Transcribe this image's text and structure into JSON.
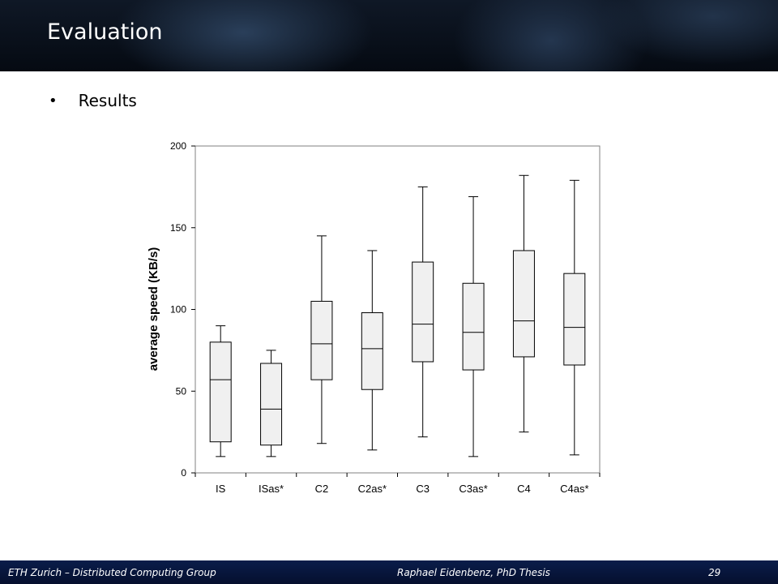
{
  "slide": {
    "title": "Evaluation",
    "bullet": "Results"
  },
  "footer": {
    "left": "ETH Zurich – Distributed Computing Group",
    "center": "Raphael Eidenbenz, PhD Thesis",
    "page": "29"
  },
  "chart_data": {
    "type": "boxplot",
    "ylabel": "average speed  (KB/s)",
    "ylim": [
      0,
      200
    ],
    "yticks": [
      0,
      50,
      100,
      150,
      200
    ],
    "categories": [
      "IS",
      "ISas*",
      "C2",
      "C2as*",
      "C3",
      "C3as*",
      "C4",
      "C4as*"
    ],
    "boxes": [
      {
        "min": 10,
        "q1": 19,
        "median": 57,
        "q3": 80,
        "max": 90
      },
      {
        "min": 10,
        "q1": 17,
        "median": 39,
        "q3": 67,
        "max": 75
      },
      {
        "min": 18,
        "q1": 57,
        "median": 79,
        "q3": 105,
        "max": 145
      },
      {
        "min": 14,
        "q1": 51,
        "median": 76,
        "q3": 98,
        "max": 136
      },
      {
        "min": 22,
        "q1": 68,
        "median": 91,
        "q3": 129,
        "max": 175
      },
      {
        "min": 10,
        "q1": 63,
        "median": 86,
        "q3": 116,
        "max": 169
      },
      {
        "min": 25,
        "q1": 71,
        "median": 93,
        "q3": 136,
        "max": 182
      },
      {
        "min": 11,
        "q1": 66,
        "median": 89,
        "q3": 122,
        "max": 179
      }
    ],
    "grid": false,
    "box_fill": "#f0f0f0",
    "line_color": "#000000"
  }
}
